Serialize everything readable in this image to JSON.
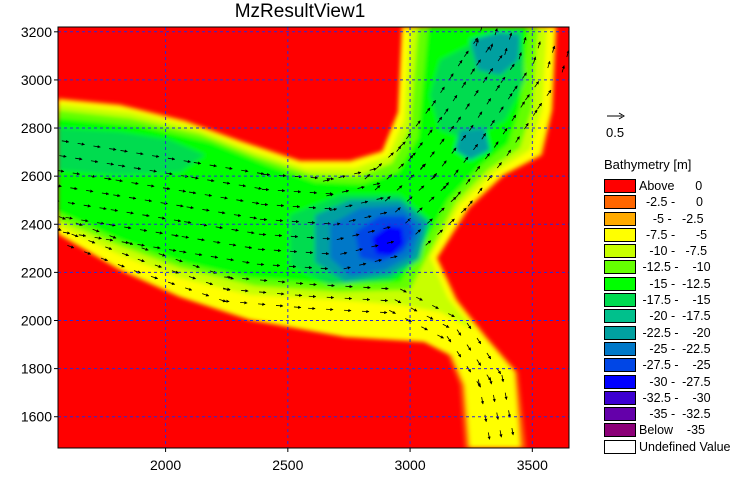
{
  "chart_data": {
    "type": "heatmap",
    "title": "MzResultView1",
    "xlabel": "",
    "ylabel": "",
    "xlim": [
      1560,
      3650
    ],
    "ylim": [
      1470,
      3220
    ],
    "x_ticks": [
      2000,
      2500,
      3000,
      3500
    ],
    "y_ticks": [
      1600,
      1800,
      2000,
      2200,
      2400,
      2600,
      2800,
      3000,
      3200
    ],
    "grid": true,
    "grid_color": "#2b2bd8",
    "vector_scale_label": "0.5",
    "legend_title": "Bathymetry [m]",
    "legend_placement": "right",
    "legend": [
      {
        "label": "Above      0",
        "color": "#ff0000"
      },
      {
        "label": "  -2.5 -      0",
        "color": "#ff6600"
      },
      {
        "label": "    -5 -   -2.5",
        "color": "#ffaa00"
      },
      {
        "label": "  -7.5 -      -5",
        "color": "#ffff00"
      },
      {
        "label": "   -10 -   -7.5",
        "color": "#c8ff00"
      },
      {
        "label": " -12.5 -    -10",
        "color": "#64ff00"
      },
      {
        "label": "   -15 -  -12.5",
        "color": "#00ff00"
      },
      {
        "label": " -17.5 -    -15",
        "color": "#00dc50"
      },
      {
        "label": "   -20 -  -17.5",
        "color": "#00c08c"
      },
      {
        "label": " -22.5 -    -20",
        "color": "#00a0a0"
      },
      {
        "label": "   -25 -  -22.5",
        "color": "#0078c8"
      },
      {
        "label": " -27.5 -    -25",
        "color": "#0046e6"
      },
      {
        "label": "   -30 -  -27.5",
        "color": "#0000ff"
      },
      {
        "label": " -32.5 -    -30",
        "color": "#3c00d2"
      },
      {
        "label": "   -35 -  -32.5",
        "color": "#6400aa"
      },
      {
        "label": "Below    -35",
        "color": "#8c0078"
      },
      {
        "label": "Undefined Value",
        "color": "#ffffff"
      }
    ],
    "channel_center_x": [
      1560,
      1800,
      2100,
      2400,
      2700,
      2950,
      3100,
      3250,
      3380,
      3450,
      3480
    ],
    "channel_center_y": [
      2560,
      2520,
      2470,
      2420,
      2400,
      2460,
      2600,
      2800,
      3000,
      3100,
      3200
    ],
    "branch_x": [
      1560,
      1900,
      2250,
      2600,
      2950,
      3200,
      3330,
      3380
    ],
    "branch_y": [
      2380,
      2250,
      2130,
      2100,
      2080,
      1950,
      1750,
      1480
    ]
  }
}
